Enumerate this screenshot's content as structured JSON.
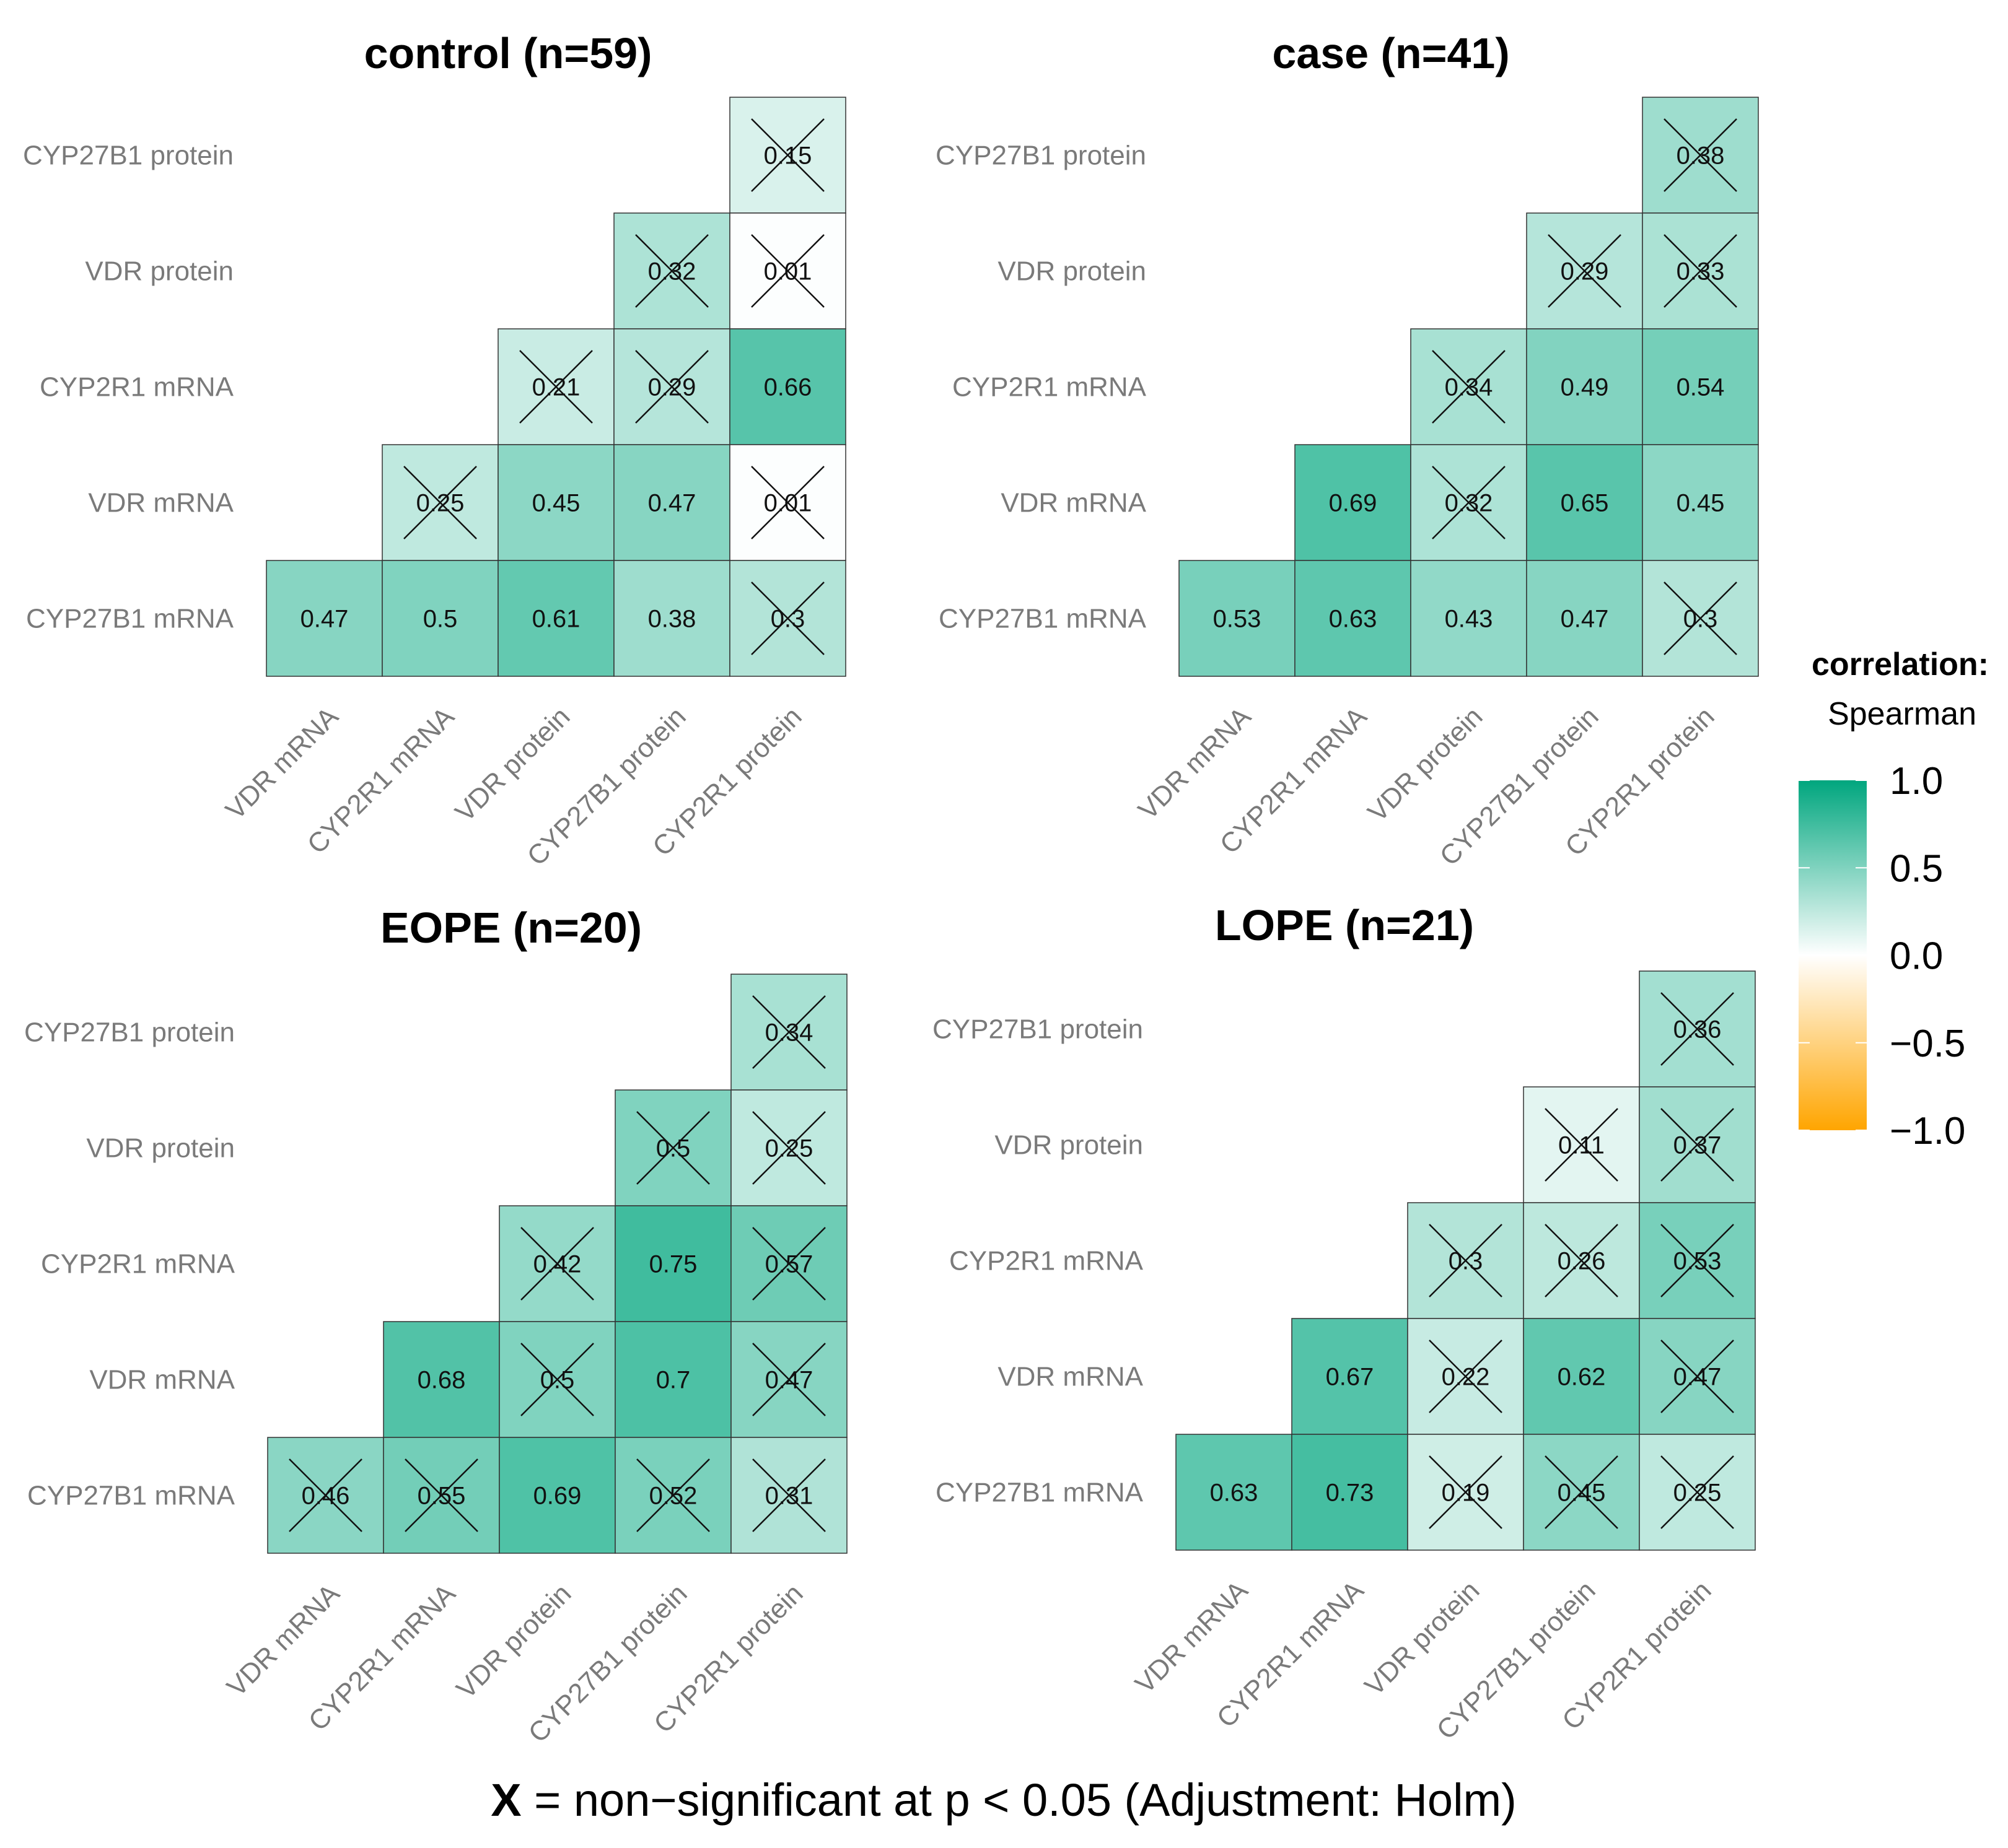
{
  "chart_data": {
    "type": "heatmap",
    "method_label": "correlation:",
    "method_name": "Spearman",
    "color_scale": {
      "min": -1.0,
      "max": 1.0,
      "low": "#FFA500",
      "mid": "#FFFFFF",
      "high": "#00A67E"
    },
    "legend_ticks": [
      "1.0",
      "0.5",
      "0.0",
      "−0.5",
      "−1.0"
    ],
    "legend_values": [
      1.0,
      0.5,
      0.0,
      -0.5,
      -1.0
    ],
    "caption_symbol": "X",
    "caption_text": " = non−significant at p < 0.05 (Adjustment: Holm)",
    "row_labels": [
      "CYP27B1 protein",
      "VDR protein",
      "CYP2R1 mRNA",
      "VDR mRNA",
      "CYP27B1 mRNA"
    ],
    "col_labels": [
      "VDR mRNA",
      "CYP2R1 mRNA",
      "VDR protein",
      "CYP27B1 protein",
      "CYP2R1 protein"
    ],
    "panels": [
      {
        "title": "control (n=59)",
        "cells": [
          [
            null,
            null,
            null,
            null,
            {
              "v": "0.15",
              "ns": true
            }
          ],
          [
            null,
            null,
            null,
            {
              "v": "0.32",
              "ns": true
            },
            {
              "v": "0.01",
              "ns": true
            }
          ],
          [
            null,
            null,
            {
              "v": "0.21",
              "ns": true
            },
            {
              "v": "0.29",
              "ns": true
            },
            {
              "v": "0.66",
              "ns": false
            }
          ],
          [
            null,
            {
              "v": "0.25",
              "ns": true
            },
            {
              "v": "0.45",
              "ns": false
            },
            {
              "v": "0.47",
              "ns": false
            },
            {
              "v": "0.01",
              "ns": true
            }
          ],
          [
            {
              "v": "0.47",
              "ns": false
            },
            {
              "v": "0.5",
              "ns": false
            },
            {
              "v": "0.61",
              "ns": false
            },
            {
              "v": "0.38",
              "ns": false
            },
            {
              "v": "0.3",
              "ns": true
            }
          ]
        ]
      },
      {
        "title": "case (n=41)",
        "cells": [
          [
            null,
            null,
            null,
            null,
            {
              "v": "0.38",
              "ns": true
            }
          ],
          [
            null,
            null,
            null,
            {
              "v": "0.29",
              "ns": true
            },
            {
              "v": "0.33",
              "ns": true
            }
          ],
          [
            null,
            null,
            {
              "v": "0.34",
              "ns": true
            },
            {
              "v": "0.49",
              "ns": false
            },
            {
              "v": "0.54",
              "ns": false
            }
          ],
          [
            null,
            {
              "v": "0.69",
              "ns": false
            },
            {
              "v": "0.32",
              "ns": true
            },
            {
              "v": "0.65",
              "ns": false
            },
            {
              "v": "0.45",
              "ns": false
            }
          ],
          [
            {
              "v": "0.53",
              "ns": false
            },
            {
              "v": "0.63",
              "ns": false
            },
            {
              "v": "0.43",
              "ns": false
            },
            {
              "v": "0.47",
              "ns": false
            },
            {
              "v": "0.3",
              "ns": true
            }
          ]
        ]
      },
      {
        "title": "EOPE (n=20)",
        "cells": [
          [
            null,
            null,
            null,
            null,
            {
              "v": "0.34",
              "ns": true
            }
          ],
          [
            null,
            null,
            null,
            {
              "v": "0.5",
              "ns": true
            },
            {
              "v": "0.25",
              "ns": true
            }
          ],
          [
            null,
            null,
            {
              "v": "0.42",
              "ns": true
            },
            {
              "v": "0.75",
              "ns": false
            },
            {
              "v": "0.57",
              "ns": true
            }
          ],
          [
            null,
            {
              "v": "0.68",
              "ns": false
            },
            {
              "v": "0.5",
              "ns": true
            },
            {
              "v": "0.7",
              "ns": false
            },
            {
              "v": "0.47",
              "ns": true
            }
          ],
          [
            {
              "v": "0.46",
              "ns": true
            },
            {
              "v": "0.55",
              "ns": true
            },
            {
              "v": "0.69",
              "ns": false
            },
            {
              "v": "0.52",
              "ns": true
            },
            {
              "v": "0.31",
              "ns": true
            }
          ]
        ]
      },
      {
        "title": "LOPE (n=21)",
        "cells": [
          [
            null,
            null,
            null,
            null,
            {
              "v": "0.36",
              "ns": true
            }
          ],
          [
            null,
            null,
            null,
            {
              "v": "0.11",
              "ns": true
            },
            {
              "v": "0.37",
              "ns": true
            }
          ],
          [
            null,
            null,
            {
              "v": "0.3",
              "ns": true
            },
            {
              "v": "0.26",
              "ns": true
            },
            {
              "v": "0.53",
              "ns": true
            }
          ],
          [
            null,
            {
              "v": "0.67",
              "ns": false
            },
            {
              "v": "0.22",
              "ns": true
            },
            {
              "v": "0.62",
              "ns": false
            },
            {
              "v": "0.47",
              "ns": true
            }
          ],
          [
            {
              "v": "0.63",
              "ns": false
            },
            {
              "v": "0.73",
              "ns": false
            },
            {
              "v": "0.19",
              "ns": true
            },
            {
              "v": "0.45",
              "ns": true
            },
            {
              "v": "0.25",
              "ns": true
            }
          ]
        ]
      }
    ]
  }
}
